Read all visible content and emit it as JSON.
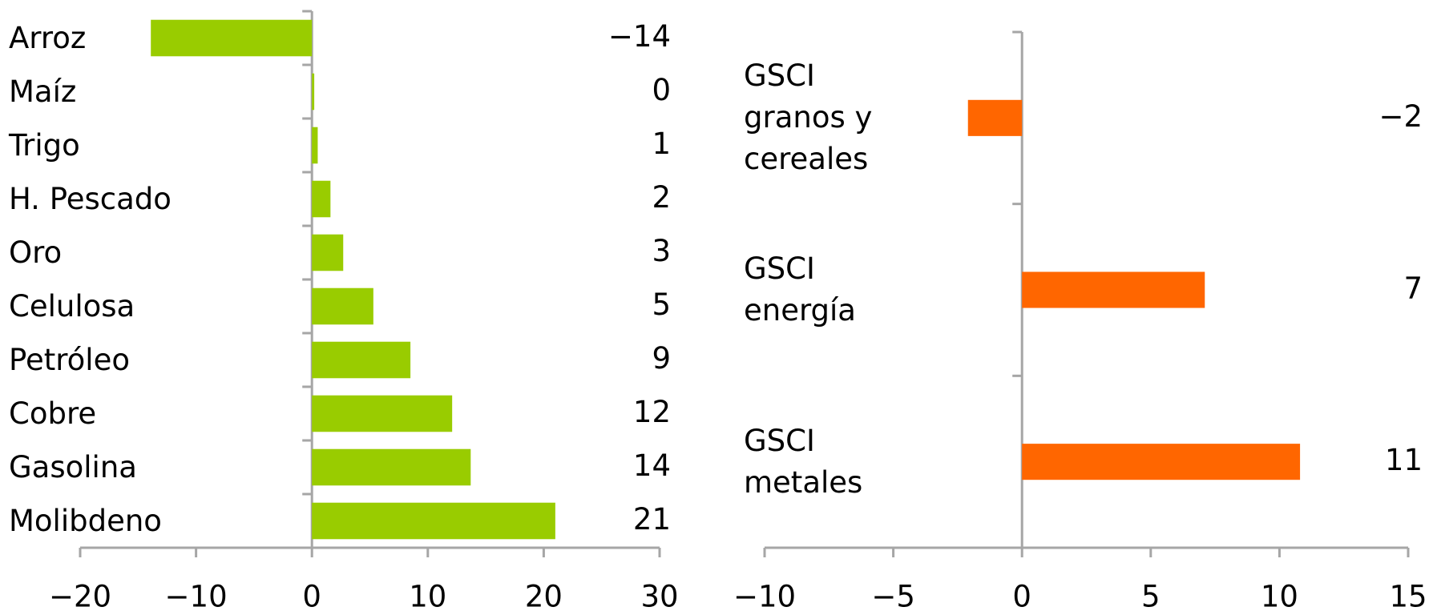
{
  "chart_data": [
    {
      "type": "bar",
      "orientation": "horizontal",
      "categories": [
        "Arroz",
        "Maíz",
        "Trigo",
        "H. Pescado",
        "Oro",
        "Celulosa",
        "Petróleo",
        "Cobre",
        "Gasolina",
        "Molibdeno"
      ],
      "values": [
        -13.9,
        0.2,
        0.5,
        1.6,
        2.7,
        5.3,
        8.5,
        12.1,
        13.7,
        21
      ],
      "value_labels": [
        "−14",
        "0",
        "1",
        "2",
        "3",
        "5",
        "9",
        "12",
        "14",
        "21"
      ],
      "color": "#99cc00",
      "xlim": [
        -20,
        30
      ],
      "xticks": [
        {
          "value": -20,
          "label": "−20"
        },
        {
          "value": -10,
          "label": "−10"
        },
        0,
        10,
        20,
        30
      ]
    },
    {
      "type": "bar",
      "orientation": "horizontal",
      "categories": [
        "GSCI granos y cereales",
        "GSCI energía",
        "GSCI metales"
      ],
      "values": [
        -2.1,
        7.1,
        10.8
      ],
      "value_labels": [
        "−2",
        "7",
        "11"
      ],
      "color": "#ff6600",
      "xlim": [
        -10,
        15
      ],
      "xticks": [
        {
          "value": -10,
          "label": "−10"
        },
        {
          "value": -5,
          "label": "−5"
        },
        0,
        5,
        10,
        15
      ]
    }
  ]
}
